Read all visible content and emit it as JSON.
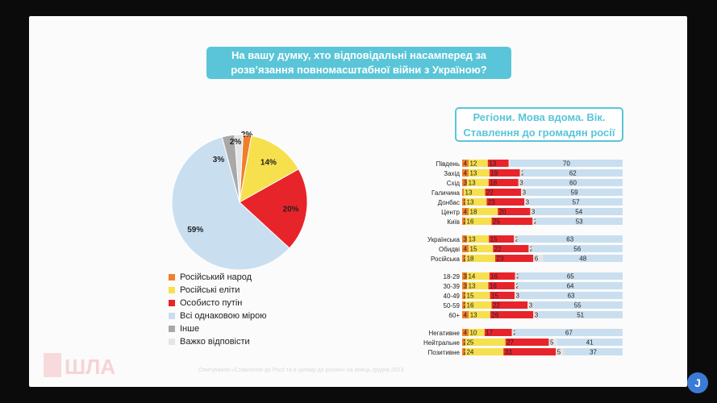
{
  "title": "На вашу думку, хто відповідальні насамперед за розв’язання повномасштабної війни з Україною?",
  "subtitle_line1": "Регіони. Мова вдома. Вік.",
  "subtitle_line2": "Ставлення до громадян росії",
  "footer": "Опитування «Ставлення до Росії та в цілому до росіян» на кінець грудня 2023",
  "logo_text": "ШЛА",
  "corner_badge": "J",
  "colors": {
    "people": "#f07f2b",
    "elites": "#f6e04d",
    "putin": "#e8242b",
    "equal": "#c9dff0",
    "other": "#a8a8a8",
    "hard": "#e5e5e5",
    "accent": "#5ac5d8"
  },
  "chart_data": [
    {
      "type": "pie",
      "title": "На вашу думку, хто відповідальні насамперед за розв’язання повномасштабної війни з Україною?",
      "categories": [
        "Російський народ",
        "Російські еліти",
        "Особисто путін",
        "Всі однаковою мірою",
        "Інше",
        "Важко відповісти"
      ],
      "values": [
        2,
        14,
        20,
        59,
        3,
        2
      ],
      "labels": [
        "2%",
        "14%",
        "20%",
        "59%",
        "3%",
        "2%"
      ],
      "legend": "bottom-left"
    },
    {
      "type": "bar",
      "stacked": true,
      "orientation": "horizontal",
      "title": "Регіони. Мова вдома. Вік. Ставлення до громадян росії",
      "series_names": [
        "Російський народ",
        "Російські еліти",
        "Особисто путін",
        "Інше / Важко відповісти",
        "Всі однаковою мірою"
      ],
      "groups": [
        {
          "name": "Регіони",
          "rows": [
            {
              "label": "Південь",
              "values": [
                4,
                12,
                13,
                1,
                70
              ]
            },
            {
              "label": "Захід",
              "values": [
                4,
                13,
                19,
                2,
                62
              ]
            },
            {
              "label": "Схід",
              "values": [
                3,
                13,
                18,
                3,
                60
              ]
            },
            {
              "label": "Галичина",
              "values": [
                1,
                13,
                22,
                3,
                59
              ]
            },
            {
              "label": "Донбас",
              "values": [
                2,
                13,
                23,
                3,
                57
              ]
            },
            {
              "label": "Центр",
              "values": [
                4,
                18,
                20,
                3,
                54
              ]
            },
            {
              "label": "Київ",
              "values": [
                2,
                16,
                25,
                2,
                53
              ]
            }
          ]
        },
        {
          "name": "Мова вдома",
          "rows": [
            {
              "label": "Українська",
              "values": [
                3,
                13,
                15,
                2,
                63
              ]
            },
            {
              "label": "Обидві",
              "values": [
                4,
                15,
                22,
                2,
                56
              ]
            },
            {
              "label": "Російська",
              "values": [
                2,
                18,
                23,
                6,
                48
              ]
            }
          ]
        },
        {
          "name": "Вік",
          "rows": [
            {
              "label": "18-29",
              "values": [
                3,
                14,
                16,
                2,
                65
              ]
            },
            {
              "label": "30-39",
              "values": [
                3,
                13,
                16,
                2,
                64
              ]
            },
            {
              "label": "40-49",
              "values": [
                2,
                15,
                15,
                3,
                63
              ]
            },
            {
              "label": "50-59",
              "values": [
                2,
                16,
                22,
                3,
                55
              ]
            },
            {
              "label": "60+",
              "values": [
                4,
                13,
                26,
                3,
                51
              ]
            }
          ]
        },
        {
          "name": "Ставлення до громадян росії",
          "rows": [
            {
              "label": "Негативне",
              "values": [
                4,
                10,
                17,
                2,
                67
              ]
            },
            {
              "label": "Нейтральне",
              "values": [
                2,
                25,
                27,
                5,
                41
              ]
            },
            {
              "label": "Позитивне",
              "values": [
                2,
                24,
                33,
                5,
                37
              ]
            }
          ]
        }
      ]
    }
  ]
}
